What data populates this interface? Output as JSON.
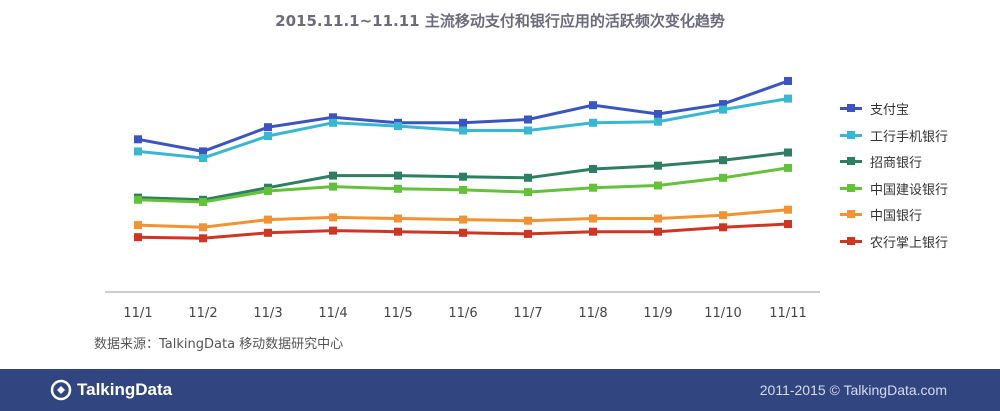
{
  "chart_data": {
    "type": "line",
    "title": "2015.11.1~11.11 主流移动支付和银行应用的活跃频次变化趋势",
    "categories": [
      "11/1",
      "11/2",
      "11/3",
      "11/4",
      "11/5",
      "11/6",
      "11/7",
      "11/8",
      "11/9",
      "11/10",
      "11/11"
    ],
    "y_range": [
      0,
      100
    ],
    "grid": false,
    "legend_position": "right",
    "series": [
      {
        "name": "支付宝",
        "color": "#3a55c2",
        "values": [
          68.5,
          63,
          74,
          78.5,
          76,
          76,
          77.5,
          84,
          80,
          84.5,
          95
        ]
      },
      {
        "name": "工行手机银行",
        "color": "#38b7d2",
        "values": [
          63,
          60,
          70,
          76,
          74.5,
          72.5,
          72.5,
          76,
          76.5,
          82,
          87
        ]
      },
      {
        "name": "招商银行",
        "color": "#2e7f62",
        "values": [
          42,
          41,
          46.5,
          52,
          52,
          51.5,
          51,
          55,
          56.5,
          59,
          62.5
        ]
      },
      {
        "name": "中国建设银行",
        "color": "#64c23a",
        "values": [
          41,
          40,
          45,
          47,
          46,
          45.5,
          44.5,
          46.5,
          47.5,
          51,
          55.5
        ]
      },
      {
        "name": "中国银行",
        "color": "#f29233",
        "values": [
          29.5,
          28.5,
          32,
          33,
          32.5,
          32,
          31.5,
          32.5,
          32.5,
          34,
          36.5
        ]
      },
      {
        "name": "农行掌上银行",
        "color": "#cf3523",
        "values": [
          24,
          23.5,
          26,
          27,
          26.5,
          26,
          25.5,
          26.5,
          26.5,
          28.5,
          30
        ]
      }
    ]
  },
  "source_note": "数据来源：TalkingData 移动数据研究中心",
  "footer": {
    "brand": "TalkingData",
    "copyright": "2011-2015 © TalkingData.com"
  }
}
